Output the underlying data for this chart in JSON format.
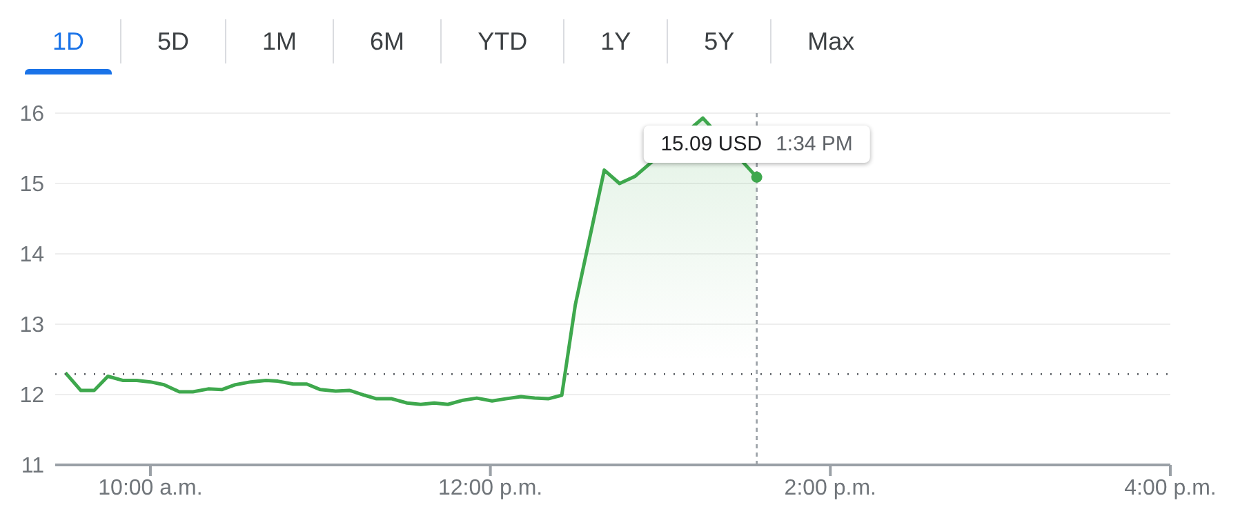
{
  "chart_data": {
    "type": "area",
    "x": [
      9.5,
      9.59,
      9.67,
      9.75,
      9.84,
      9.92,
      10.0,
      10.08,
      10.17,
      10.25,
      10.34,
      10.42,
      10.5,
      10.59,
      10.68,
      10.75,
      10.84,
      10.92,
      11.0,
      11.09,
      11.17,
      11.26,
      11.33,
      11.42,
      11.51,
      11.59,
      11.67,
      11.75,
      11.84,
      11.92,
      12.01,
      12.09,
      12.18,
      12.26,
      12.34,
      12.42,
      12.5,
      12.67,
      12.76,
      12.85,
      13.25,
      13.567
    ],
    "series": [
      {
        "color": "#3ea84d",
        "values": [
          12.31,
          12.06,
          12.06,
          12.26,
          12.2,
          12.2,
          12.18,
          12.14,
          12.04,
          12.04,
          12.08,
          12.07,
          12.14,
          12.18,
          12.2,
          12.19,
          12.15,
          12.15,
          12.07,
          12.05,
          12.06,
          11.99,
          11.94,
          11.94,
          11.88,
          11.86,
          11.88,
          11.86,
          11.92,
          11.95,
          11.91,
          11.94,
          11.97,
          11.95,
          11.94,
          11.99,
          13.28,
          15.19,
          15.0,
          15.1,
          15.93,
          15.09
        ]
      }
    ],
    "xlim": [
      9.44,
      16.0
    ],
    "xticks": [
      {
        "value": 10,
        "label": "10:00 a.m."
      },
      {
        "value": 12,
        "label": "12:00 p.m."
      },
      {
        "value": 14,
        "label": "2:00 p.m."
      },
      {
        "value": 16,
        "label": "4:00 p.m."
      }
    ],
    "ylim": [
      11,
      16
    ],
    "yticks": [
      11,
      12,
      13,
      14,
      15,
      16
    ],
    "grid": "y",
    "line_style": "solid",
    "marker": "none",
    "ref_lines": [
      {
        "axis": "y",
        "value": 12.29,
        "line_style": "dotted",
        "color": "#5f6368"
      },
      {
        "axis": "x",
        "value": 13.567,
        "line_style": "dashed",
        "color": "#9aa0a6"
      }
    ],
    "annotations": [
      "1D",
      "5D",
      "1M",
      "6M",
      "YTD",
      "1Y",
      "5Y",
      "Max",
      {
        "text": "15.09 USD",
        "x": 13.567,
        "y": 15.09
      },
      {
        "text": "1:34 PM",
        "x": 13.567,
        "y": 15.09
      }
    ]
  }
}
